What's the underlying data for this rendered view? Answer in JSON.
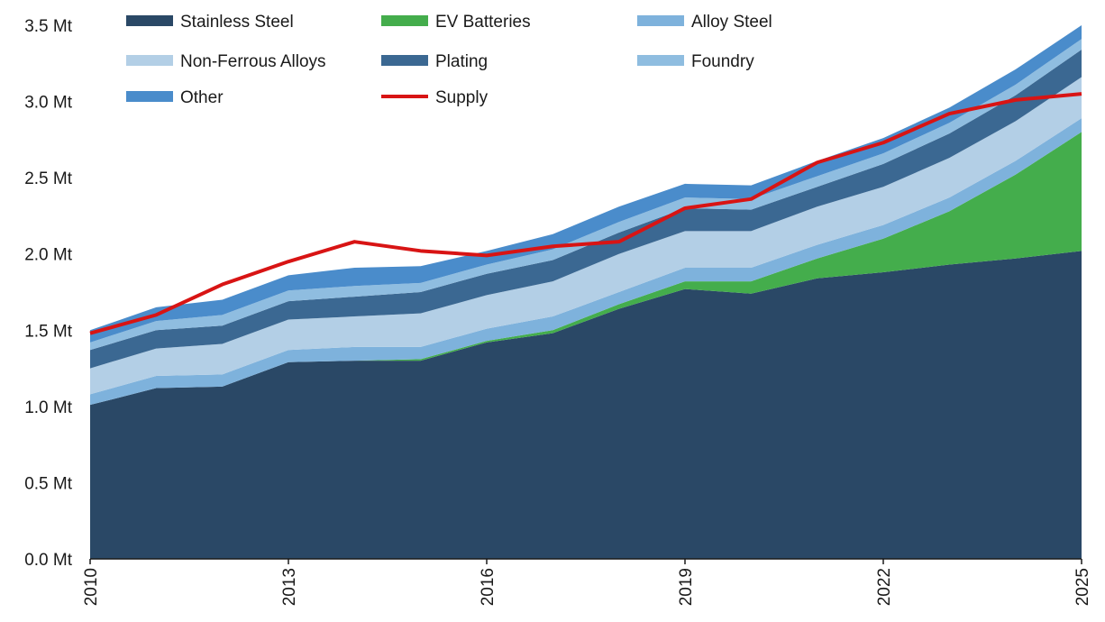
{
  "chart_data": {
    "type": "area",
    "stacked": true,
    "x": [
      2010,
      2011,
      2012,
      2013,
      2014,
      2015,
      2016,
      2017,
      2018,
      2019,
      2020,
      2021,
      2022,
      2023,
      2024,
      2025
    ],
    "x_tick_labels": [
      "2010",
      "2013",
      "2016",
      "2019",
      "2022",
      "2025"
    ],
    "x_tick_values": [
      2010,
      2013,
      2016,
      2019,
      2022,
      2025
    ],
    "ylim": [
      0,
      3.5
    ],
    "y_ticks": [
      0,
      0.5,
      1.0,
      1.5,
      2.0,
      2.5,
      3.0,
      3.5
    ],
    "y_tick_labels": [
      "0.0 Mt",
      "0.5 Mt",
      "1.0 Mt",
      "1.5 Mt",
      "2.0 Mt",
      "2.5 Mt",
      "3.0 Mt",
      "3.5 Mt"
    ],
    "legend_position": "top-left",
    "series": [
      {
        "name": "Stainless Steel",
        "color": "#2a4866",
        "values": [
          1.01,
          1.12,
          1.13,
          1.29,
          1.3,
          1.3,
          1.42,
          1.48,
          1.64,
          1.77,
          1.74,
          1.84,
          1.88,
          1.93,
          1.97,
          2.02
        ]
      },
      {
        "name": "EV Batteries",
        "color": "#44ad4c",
        "values": [
          0.0,
          0.0,
          0.0,
          0.0,
          0.0,
          0.01,
          0.01,
          0.02,
          0.03,
          0.05,
          0.08,
          0.13,
          0.22,
          0.35,
          0.55,
          0.78
        ]
      },
      {
        "name": "Alloy Steel",
        "color": "#7eb2dc",
        "values": [
          0.07,
          0.08,
          0.08,
          0.08,
          0.09,
          0.08,
          0.08,
          0.09,
          0.08,
          0.09,
          0.09,
          0.09,
          0.09,
          0.09,
          0.09,
          0.09
        ]
      },
      {
        "name": "Non-Ferrous Alloys",
        "color": "#b3cfe6",
        "values": [
          0.17,
          0.18,
          0.2,
          0.2,
          0.2,
          0.22,
          0.22,
          0.23,
          0.25,
          0.24,
          0.24,
          0.25,
          0.25,
          0.26,
          0.26,
          0.27
        ]
      },
      {
        "name": "Plating",
        "color": "#3b6892",
        "values": [
          0.12,
          0.12,
          0.12,
          0.12,
          0.13,
          0.14,
          0.14,
          0.14,
          0.14,
          0.15,
          0.14,
          0.13,
          0.15,
          0.16,
          0.17,
          0.18
        ]
      },
      {
        "name": "Foundry",
        "color": "#8fbde0",
        "values": [
          0.05,
          0.06,
          0.07,
          0.07,
          0.07,
          0.06,
          0.06,
          0.07,
          0.07,
          0.07,
          0.07,
          0.07,
          0.07,
          0.07,
          0.07,
          0.07
        ]
      },
      {
        "name": "Other",
        "color": "#4a8ccb",
        "values": [
          0.08,
          0.09,
          0.1,
          0.1,
          0.12,
          0.11,
          0.09,
          0.1,
          0.1,
          0.09,
          0.09,
          0.1,
          0.1,
          0.1,
          0.1,
          0.09
        ]
      }
    ],
    "lines": [
      {
        "name": "Supply",
        "color": "#d81414",
        "values": [
          1.48,
          1.6,
          1.8,
          1.95,
          2.08,
          2.02,
          1.99,
          2.05,
          2.08,
          2.3,
          2.36,
          2.6,
          2.73,
          2.92,
          3.01,
          3.05
        ]
      }
    ]
  }
}
